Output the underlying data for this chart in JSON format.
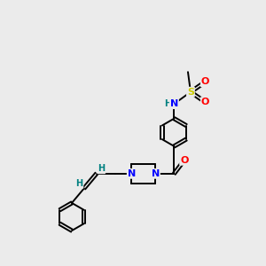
{
  "bg_color": "#ebebeb",
  "atom_colors": {
    "C": "#000000",
    "N": "#0000ff",
    "O": "#ff0000",
    "S": "#cccc00",
    "H": "#008080"
  },
  "bond_color": "#000000",
  "lw": 1.4,
  "r_ring": 0.52,
  "xlim": [
    0,
    10
  ],
  "ylim": [
    0,
    10
  ]
}
